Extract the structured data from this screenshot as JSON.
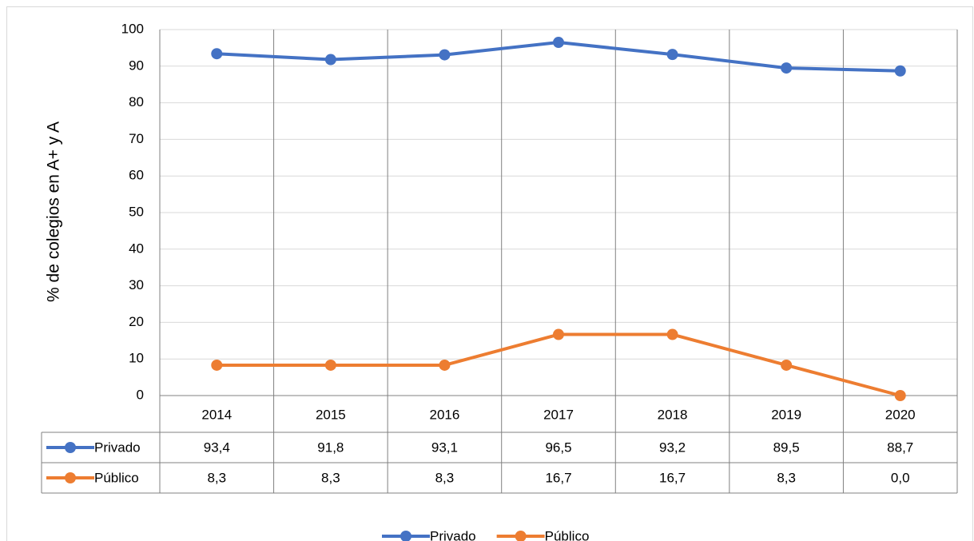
{
  "chart_data": {
    "type": "line",
    "y_label": "% de colegios en A+ y A",
    "categories": [
      "2014",
      "2015",
      "2016",
      "2017",
      "2018",
      "2019",
      "2020"
    ],
    "series": [
      {
        "name": "Privado",
        "color": "#4472c4",
        "values": [
          93.4,
          91.8,
          93.1,
          96.5,
          93.2,
          89.5,
          88.7
        ],
        "value_labels": [
          "93,4",
          "91,8",
          "93,1",
          "96,5",
          "93,2",
          "89,5",
          "88,7"
        ]
      },
      {
        "name": "Público",
        "color": "#ed7d31",
        "values": [
          8.3,
          8.3,
          8.3,
          16.7,
          16.7,
          8.3,
          0.0
        ],
        "value_labels": [
          "8,3",
          "8,3",
          "8,3",
          "16,7",
          "16,7",
          "8,3",
          "0,0"
        ]
      }
    ],
    "ylim": [
      0,
      100
    ],
    "yticks": [
      0,
      10,
      20,
      30,
      40,
      50,
      60,
      70,
      80,
      90,
      100
    ],
    "grid": true,
    "legend": "bottom",
    "data_table": true
  }
}
